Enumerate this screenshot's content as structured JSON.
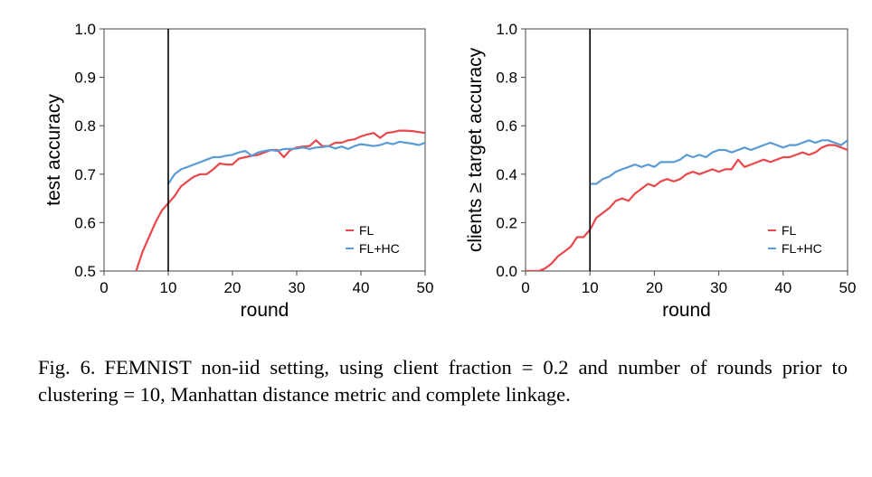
{
  "colors": {
    "fl": "#e8474b",
    "flhc": "#5b9bd5",
    "marker": "#000000"
  },
  "chart_data": [
    {
      "type": "line",
      "title": "",
      "xlabel": "round",
      "ylabel": "test accuracy",
      "xlim": [
        0,
        50
      ],
      "ylim": [
        0.5,
        1.0
      ],
      "xticks": [
        0,
        10,
        20,
        30,
        40,
        50
      ],
      "yticks": [
        0.5,
        0.6,
        0.7,
        0.8,
        0.9,
        1.0
      ],
      "xtick_labels": [
        "0",
        "10",
        "20",
        "30",
        "40",
        "50"
      ],
      "ytick_labels": [
        "0.5",
        "0.6",
        "0.7",
        "0.8",
        "0.9",
        "1.0"
      ],
      "vline": 10,
      "grid": false,
      "legend_position": "bottom-right",
      "series": [
        {
          "name": "FL",
          "color": "#e8474b",
          "x": [
            5,
            6,
            7,
            8,
            9,
            10,
            11,
            12,
            13,
            14,
            15,
            16,
            17,
            18,
            19,
            20,
            21,
            22,
            23,
            24,
            25,
            26,
            27,
            28,
            29,
            30,
            31,
            32,
            33,
            34,
            35,
            36,
            37,
            38,
            39,
            40,
            41,
            42,
            43,
            44,
            45,
            46,
            47,
            48,
            49,
            50
          ],
          "y": [
            0.5,
            0.54,
            0.57,
            0.6,
            0.625,
            0.64,
            0.655,
            0.675,
            0.685,
            0.695,
            0.7,
            0.7,
            0.71,
            0.722,
            0.72,
            0.72,
            0.732,
            0.735,
            0.738,
            0.74,
            0.745,
            0.75,
            0.75,
            0.735,
            0.75,
            0.755,
            0.757,
            0.758,
            0.77,
            0.758,
            0.758,
            0.765,
            0.765,
            0.77,
            0.772,
            0.778,
            0.782,
            0.785,
            0.775,
            0.785,
            0.787,
            0.79,
            0.79,
            0.789,
            0.787,
            0.785
          ]
        },
        {
          "name": "FL+HC",
          "color": "#5b9bd5",
          "x": [
            10,
            11,
            12,
            13,
            14,
            15,
            16,
            17,
            18,
            19,
            20,
            21,
            22,
            23,
            24,
            25,
            26,
            27,
            28,
            29,
            30,
            31,
            32,
            33,
            34,
            35,
            36,
            37,
            38,
            39,
            40,
            41,
            42,
            43,
            44,
            45,
            46,
            47,
            48,
            49,
            50
          ],
          "y": [
            0.68,
            0.7,
            0.71,
            0.715,
            0.72,
            0.725,
            0.73,
            0.735,
            0.735,
            0.738,
            0.74,
            0.745,
            0.748,
            0.738,
            0.745,
            0.748,
            0.75,
            0.748,
            0.752,
            0.752,
            0.753,
            0.755,
            0.752,
            0.755,
            0.756,
            0.758,
            0.753,
            0.757,
            0.752,
            0.758,
            0.762,
            0.76,
            0.758,
            0.76,
            0.765,
            0.762,
            0.767,
            0.765,
            0.763,
            0.76,
            0.765
          ]
        }
      ]
    },
    {
      "type": "line",
      "title": "",
      "xlabel": "round",
      "ylabel": "clients ≥ target accuracy",
      "xlim": [
        0,
        50
      ],
      "ylim": [
        0.0,
        1.0
      ],
      "xticks": [
        0,
        10,
        20,
        30,
        40,
        50
      ],
      "yticks": [
        0.0,
        0.2,
        0.4,
        0.6,
        0.8,
        1.0
      ],
      "xtick_labels": [
        "0",
        "10",
        "20",
        "30",
        "40",
        "50"
      ],
      "ytick_labels": [
        "0.0",
        "0.2",
        "0.4",
        "0.6",
        "0.8",
        "1.0"
      ],
      "vline": 10,
      "grid": false,
      "legend_position": "bottom-right",
      "series": [
        {
          "name": "FL",
          "color": "#e8474b",
          "x": [
            0,
            1,
            2,
            3,
            4,
            5,
            6,
            7,
            8,
            9,
            10,
            11,
            12,
            13,
            14,
            15,
            16,
            17,
            18,
            19,
            20,
            21,
            22,
            23,
            24,
            25,
            26,
            27,
            28,
            29,
            30,
            31,
            32,
            33,
            34,
            35,
            36,
            37,
            38,
            39,
            40,
            41,
            42,
            43,
            44,
            45,
            46,
            47,
            48,
            49,
            50
          ],
          "y": [
            0.0,
            0.0,
            0.0,
            0.01,
            0.03,
            0.06,
            0.08,
            0.1,
            0.14,
            0.14,
            0.17,
            0.22,
            0.24,
            0.26,
            0.29,
            0.3,
            0.29,
            0.32,
            0.34,
            0.36,
            0.35,
            0.37,
            0.38,
            0.37,
            0.38,
            0.4,
            0.41,
            0.4,
            0.41,
            0.42,
            0.41,
            0.42,
            0.42,
            0.46,
            0.43,
            0.44,
            0.45,
            0.46,
            0.45,
            0.46,
            0.47,
            0.47,
            0.48,
            0.49,
            0.48,
            0.49,
            0.51,
            0.52,
            0.52,
            0.51,
            0.5
          ]
        },
        {
          "name": "FL+HC",
          "color": "#5b9bd5",
          "x": [
            10,
            11,
            12,
            13,
            14,
            15,
            16,
            17,
            18,
            19,
            20,
            21,
            22,
            23,
            24,
            25,
            26,
            27,
            28,
            29,
            30,
            31,
            32,
            33,
            34,
            35,
            36,
            37,
            38,
            39,
            40,
            41,
            42,
            43,
            44,
            45,
            46,
            47,
            48,
            49,
            50
          ],
          "y": [
            0.36,
            0.36,
            0.38,
            0.39,
            0.41,
            0.42,
            0.43,
            0.44,
            0.43,
            0.44,
            0.43,
            0.45,
            0.45,
            0.45,
            0.46,
            0.48,
            0.47,
            0.48,
            0.47,
            0.49,
            0.5,
            0.5,
            0.49,
            0.5,
            0.51,
            0.5,
            0.51,
            0.52,
            0.53,
            0.52,
            0.51,
            0.52,
            0.52,
            0.53,
            0.54,
            0.53,
            0.54,
            0.54,
            0.53,
            0.52,
            0.54
          ]
        }
      ]
    }
  ],
  "caption": {
    "label": "Fig. 6.",
    "text": "FEMNIST non-iid setting, using client fraction = 0.2 and number of rounds prior to clustering = 10, Manhattan distance metric and complete linkage."
  }
}
